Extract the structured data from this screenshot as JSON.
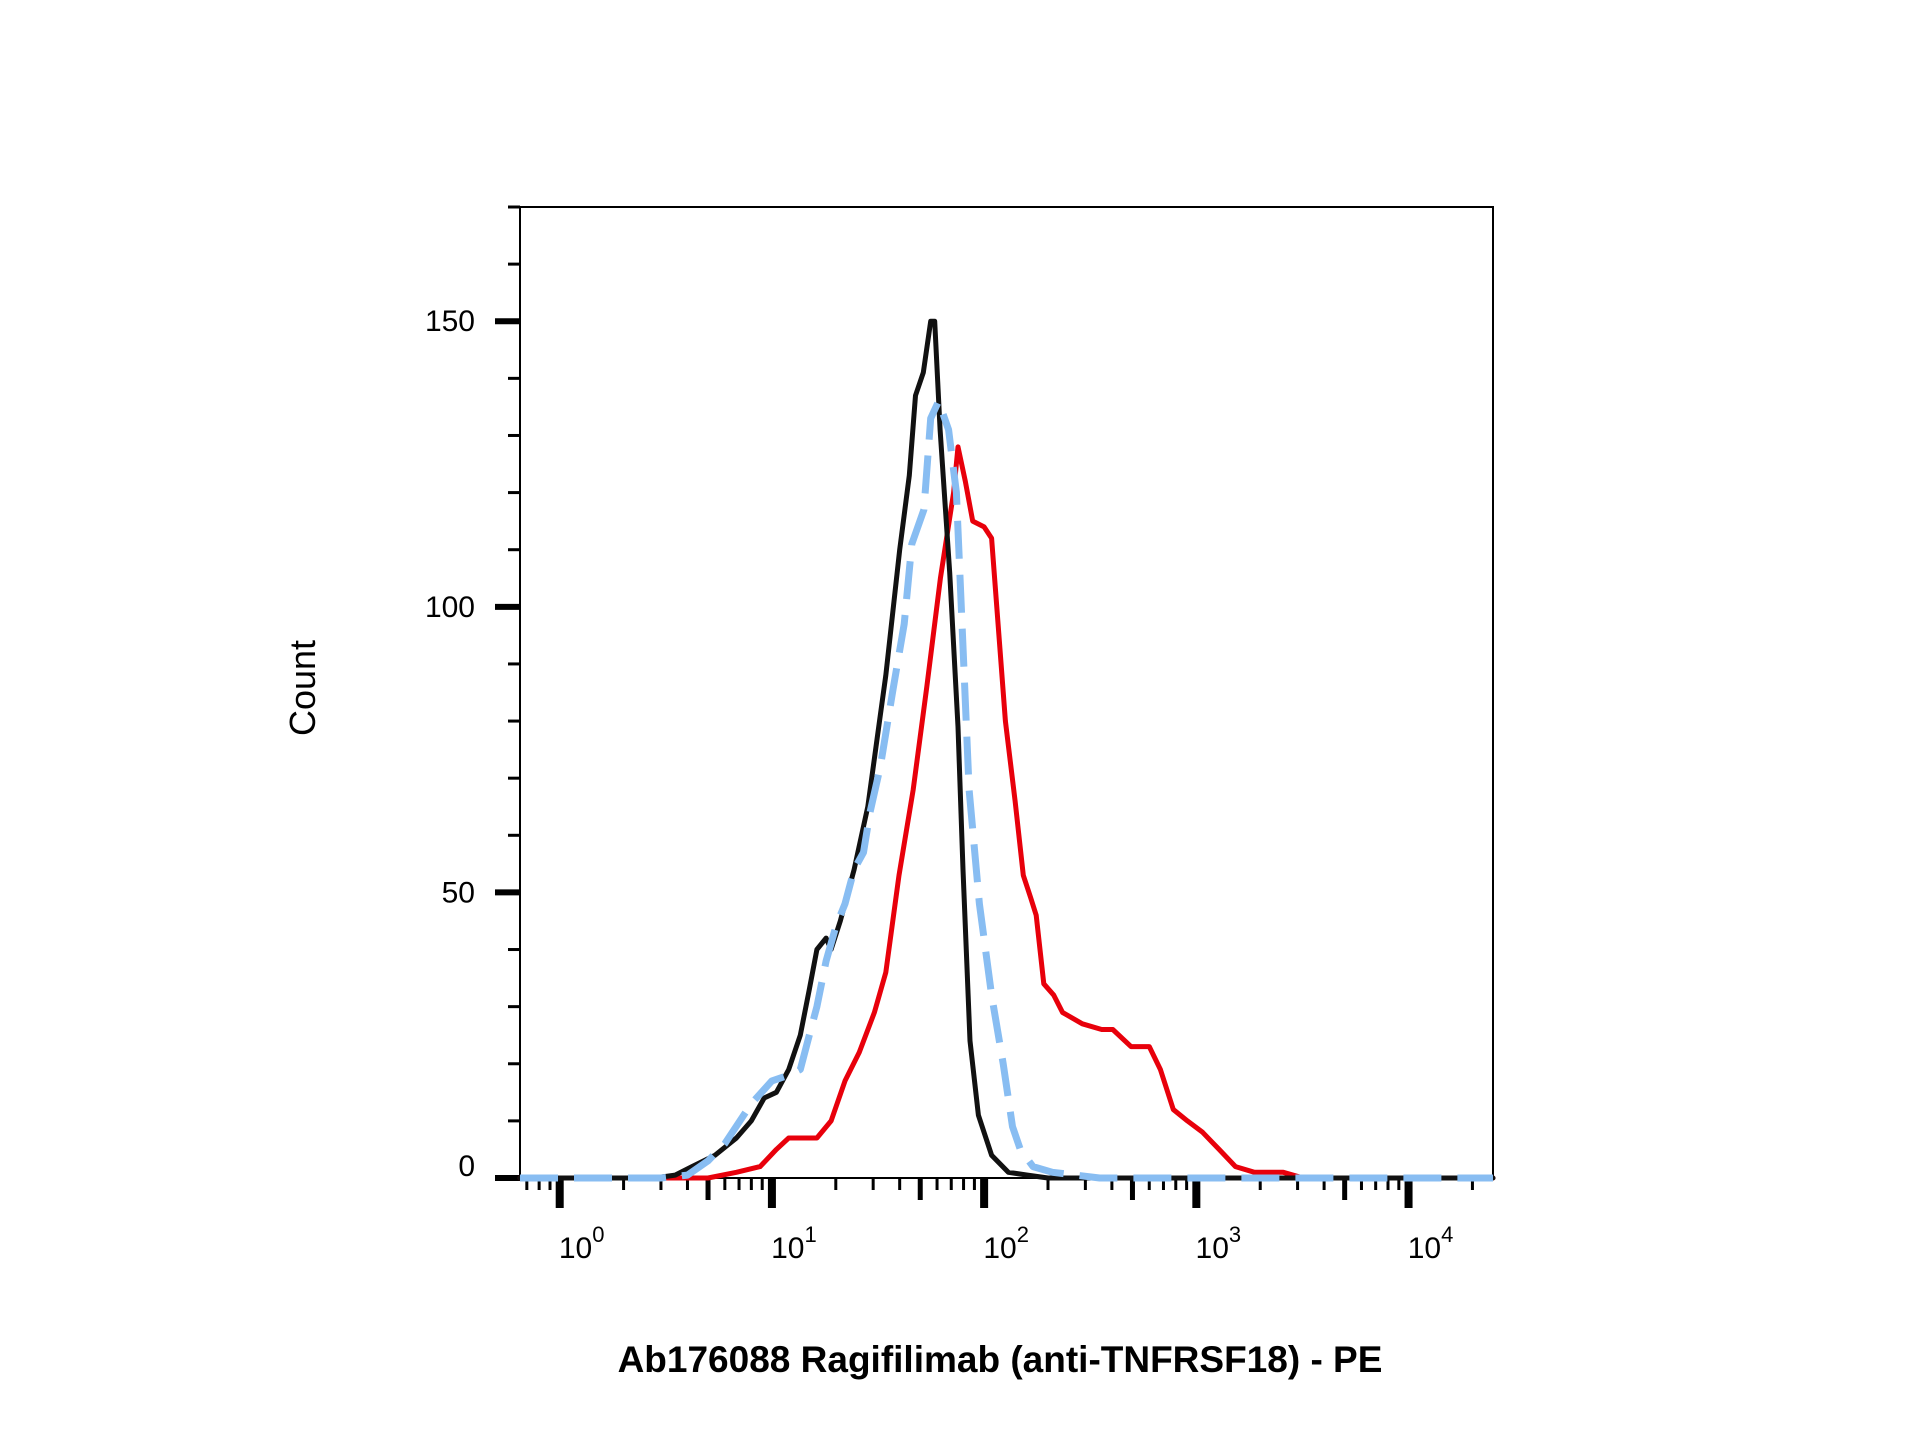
{
  "chart_data": {
    "type": "line",
    "title": "",
    "xlabel": "Ab176088 Ragifilimab (anti-TNFRSF18) - PE",
    "ylabel": "Count",
    "x_scale": "log",
    "xlim": [
      0.65,
      25000
    ],
    "ylim": [
      0,
      170
    ],
    "y_ticks": [
      0,
      50,
      100,
      150
    ],
    "x_ticks": [
      {
        "value": 1,
        "base": "10",
        "exp": "0"
      },
      {
        "value": 10,
        "base": "10",
        "exp": "1"
      },
      {
        "value": 100,
        "base": "10",
        "exp": "2"
      },
      {
        "value": 1000,
        "base": "10",
        "exp": "3"
      },
      {
        "value": 10000,
        "base": "10",
        "exp": "4"
      }
    ],
    "grid": false,
    "legend": "none",
    "series": [
      {
        "color": "#e8000b",
        "style": "solid",
        "points": [
          [
            0.65,
            0
          ],
          [
            5.0,
            0
          ],
          [
            6.8,
            1
          ],
          [
            8.8,
            2
          ],
          [
            10.5,
            5
          ],
          [
            12.0,
            7
          ],
          [
            16.3,
            7
          ],
          [
            19.0,
            10
          ],
          [
            22.1,
            17
          ],
          [
            25.8,
            22
          ],
          [
            30.4,
            29
          ],
          [
            34.4,
            36
          ],
          [
            39.7,
            53
          ],
          [
            46.3,
            68
          ],
          [
            53.7,
            86
          ],
          [
            62.2,
            105
          ],
          [
            71.8,
            120
          ],
          [
            75.3,
            128
          ],
          [
            81.5,
            122
          ],
          [
            88.3,
            115
          ],
          [
            100.0,
            114
          ],
          [
            108.4,
            112
          ],
          [
            125.9,
            80
          ],
          [
            140.0,
            66
          ],
          [
            153.0,
            53
          ],
          [
            166.0,
            49
          ],
          [
            176.0,
            46
          ],
          [
            191.0,
            34
          ],
          [
            213.0,
            32
          ],
          [
            234.0,
            29
          ],
          [
            290.0,
            27
          ],
          [
            358.0,
            26
          ],
          [
            404.0,
            26
          ],
          [
            492.0,
            23
          ],
          [
            600.0,
            23
          ],
          [
            677.0,
            19
          ],
          [
            779.0,
            12
          ],
          [
            908.0,
            10
          ],
          [
            1070.0,
            8
          ],
          [
            1280.0,
            5
          ],
          [
            1530.0,
            2
          ],
          [
            1880.0,
            1
          ],
          [
            2570.0,
            1
          ],
          [
            3190.0,
            0
          ],
          [
            25000,
            0
          ]
        ]
      },
      {
        "color": "#111111",
        "style": "solid",
        "points": [
          [
            0.65,
            0
          ],
          [
            2.8,
            0
          ],
          [
            3.5,
            0.5
          ],
          [
            4.2,
            2
          ],
          [
            5.4,
            4
          ],
          [
            6.8,
            7
          ],
          [
            8.0,
            10
          ],
          [
            9.2,
            14
          ],
          [
            10.5,
            15
          ],
          [
            12.0,
            19
          ],
          [
            13.6,
            25
          ],
          [
            15.0,
            33
          ],
          [
            16.3,
            40
          ],
          [
            18.0,
            42
          ],
          [
            19.0,
            40
          ],
          [
            21.0,
            45
          ],
          [
            24.4,
            54
          ],
          [
            28.3,
            65
          ],
          [
            32.4,
            81
          ],
          [
            34.4,
            88
          ],
          [
            40.0,
            110
          ],
          [
            44.4,
            123
          ],
          [
            47.5,
            137
          ],
          [
            51.7,
            141
          ],
          [
            56.0,
            150
          ],
          [
            58.5,
            150
          ],
          [
            62.0,
            131
          ],
          [
            68.8,
            106
          ],
          [
            75.3,
            79
          ],
          [
            79.5,
            54
          ],
          [
            85.8,
            24
          ],
          [
            94.0,
            11
          ],
          [
            108.4,
            4
          ],
          [
            130.0,
            1
          ],
          [
            160.0,
            0.5
          ],
          [
            200.0,
            0
          ],
          [
            25000,
            0
          ]
        ]
      },
      {
        "color": "#88bdf2",
        "style": "dashed",
        "points": [
          [
            0.65,
            0
          ],
          [
            3.0,
            0
          ],
          [
            4.0,
            0.5
          ],
          [
            5.0,
            3
          ],
          [
            6.0,
            6
          ],
          [
            8.0,
            13
          ],
          [
            10.0,
            17
          ],
          [
            12.0,
            18
          ],
          [
            13.6,
            19
          ],
          [
            15.0,
            25
          ],
          [
            16.3,
            30
          ],
          [
            18.0,
            38
          ],
          [
            20.0,
            44
          ],
          [
            22.1,
            48
          ],
          [
            24.4,
            54
          ],
          [
            27.0,
            57
          ],
          [
            29.0,
            64
          ],
          [
            32.4,
            72
          ],
          [
            37.0,
            85
          ],
          [
            42.0,
            97
          ],
          [
            45.6,
            111
          ],
          [
            52.0,
            117
          ],
          [
            56.0,
            133
          ],
          [
            61.0,
            136
          ],
          [
            68.0,
            131
          ],
          [
            74.0,
            120
          ],
          [
            85.0,
            68
          ],
          [
            95.0,
            48
          ],
          [
            108.4,
            32
          ],
          [
            123.0,
            20
          ],
          [
            136.0,
            9
          ],
          [
            148.0,
            5
          ],
          [
            170.0,
            2
          ],
          [
            210.0,
            1
          ],
          [
            270.0,
            0.5
          ],
          [
            350.0,
            0
          ],
          [
            25000,
            0
          ]
        ]
      }
    ]
  }
}
